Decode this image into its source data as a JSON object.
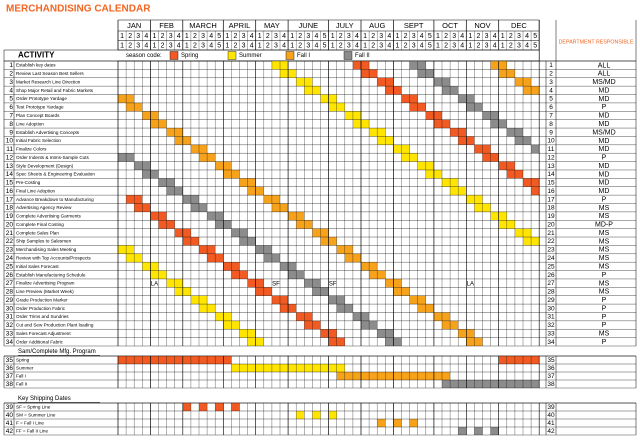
{
  "title": "MERCHANDISING CALENDAR",
  "months": [
    {
      "name": "JAN",
      "weeks": [
        1,
        2,
        3,
        4
      ]
    },
    {
      "name": "FEB",
      "weeks": [
        1,
        2,
        3,
        4
      ]
    },
    {
      "name": "MARCH",
      "weeks": [
        1,
        2,
        3,
        4,
        5
      ]
    },
    {
      "name": "APRIL",
      "weeks": [
        1,
        2,
        3,
        4
      ]
    },
    {
      "name": "MAY",
      "weeks": [
        1,
        2,
        3,
        4
      ]
    },
    {
      "name": "JUNE",
      "weeks": [
        1,
        2,
        3,
        4,
        5
      ]
    },
    {
      "name": "JULY",
      "weeks": [
        1,
        2,
        3,
        4
      ]
    },
    {
      "name": "AUG",
      "weeks": [
        1,
        2,
        3,
        4
      ]
    },
    {
      "name": "SEPT",
      "weeks": [
        1,
        2,
        3,
        4,
        5
      ]
    },
    {
      "name": "OCT",
      "weeks": [
        1,
        2,
        3,
        4
      ]
    },
    {
      "name": "NOV",
      "weeks": [
        1,
        2,
        3,
        4
      ]
    },
    {
      "name": "DEC",
      "weeks": [
        1,
        2,
        3,
        4,
        5
      ]
    }
  ],
  "activity_header": "ACTIVITY",
  "season_code_label": "season code:",
  "seasons": [
    {
      "name": "Spring",
      "color": "#f15a22"
    },
    {
      "name": "Summer",
      "color": "#ffe500"
    },
    {
      "name": "Fall I",
      "color": "#f7a21b"
    },
    {
      "name": "Fall II",
      "color": "#8c8c8c"
    }
  ],
  "department_header": "DEPARTMENT RESPONSIBLE",
  "rows": [
    {
      "num": 1,
      "activity": "Establish key dates",
      "dept": "ALL",
      "spans": [
        [
          29,
          2,
          0
        ],
        [
          19,
          2,
          1
        ],
        [
          46,
          2,
          2
        ],
        [
          36,
          2,
          3
        ]
      ]
    },
    {
      "num": 2,
      "activity": "Review Last Season Best Sellers",
      "dept": "ALL",
      "spans": [
        [
          30,
          2,
          0
        ],
        [
          20,
          2,
          1
        ],
        [
          47,
          2,
          2
        ],
        [
          37,
          2,
          3
        ]
      ]
    },
    {
      "num": 3,
      "activity": "Market Research Line Direction",
      "dept": "MS/MD",
      "spans": [
        [
          32,
          2,
          0
        ],
        [
          22,
          2,
          1
        ],
        [
          49,
          2,
          2
        ],
        [
          39,
          2,
          3
        ]
      ]
    },
    {
      "num": 4,
      "activity": "Shop Major Retail and Fabric Markets",
      "dept": "MD",
      "spans": [
        [
          33,
          2,
          0
        ],
        [
          23,
          2,
          1
        ],
        [
          50,
          2,
          2
        ],
        [
          40,
          2,
          3
        ]
      ]
    },
    {
      "num": 5,
      "activity": "Order Prototype Yardage",
      "dept": "MD",
      "spans": [
        [
          35,
          2,
          0
        ],
        [
          25,
          2,
          1
        ],
        [
          0,
          2,
          2
        ],
        [
          42,
          2,
          3
        ]
      ]
    },
    {
      "num": 6,
      "activity": "Test Prototype Yardage",
      "dept": "P",
      "spans": [
        [
          36,
          2,
          0
        ],
        [
          26,
          2,
          1
        ],
        [
          1,
          2,
          2
        ],
        [
          43,
          2,
          3
        ]
      ]
    },
    {
      "num": 7,
      "activity": "Plan Concept Boards",
      "dept": "MD",
      "spans": [
        [
          38,
          2,
          0
        ],
        [
          28,
          2,
          1
        ],
        [
          3,
          2,
          2
        ],
        [
          45,
          2,
          3
        ]
      ]
    },
    {
      "num": 8,
      "activity": "Line Adoption",
      "dept": "MD",
      "spans": [
        [
          39,
          2,
          0
        ],
        [
          29,
          2,
          1
        ],
        [
          4,
          2,
          2
        ],
        [
          46,
          2,
          3
        ]
      ]
    },
    {
      "num": 9,
      "activity": "Establish Advertising Concepts",
      "dept": "MS/MD",
      "spans": [
        [
          41,
          2,
          0
        ],
        [
          31,
          2,
          1
        ],
        [
          6,
          2,
          2
        ],
        [
          48,
          2,
          3
        ]
      ]
    },
    {
      "num": 10,
      "activity": "Initial Fabric Selection",
      "dept": "MD",
      "spans": [
        [
          42,
          2,
          0
        ],
        [
          32,
          2,
          1
        ],
        [
          7,
          2,
          2
        ],
        [
          49,
          2,
          3
        ]
      ]
    },
    {
      "num": 11,
      "activity": "Finalize Colors",
      "dept": "MD",
      "spans": [
        [
          44,
          2,
          0
        ],
        [
          34,
          2,
          1
        ],
        [
          9,
          2,
          2
        ],
        [
          51,
          1,
          3
        ]
      ]
    },
    {
      "num": 12,
      "activity": "Order Indents & Intms-Sample Cuts",
      "dept": "P",
      "spans": [
        [
          45,
          2,
          0
        ],
        [
          35,
          2,
          1
        ],
        [
          10,
          2,
          2
        ],
        [
          0,
          2,
          3
        ]
      ]
    },
    {
      "num": 13,
      "activity": "Style Development (Design)",
      "dept": "MD",
      "spans": [
        [
          47,
          2,
          0
        ],
        [
          37,
          2,
          1
        ],
        [
          12,
          2,
          2
        ],
        [
          2,
          2,
          3
        ]
      ]
    },
    {
      "num": 14,
      "activity": "Spec Sheets & Engineering Evaluation",
      "dept": "MD",
      "spans": [
        [
          48,
          2,
          0
        ],
        [
          38,
          2,
          1
        ],
        [
          13,
          2,
          2
        ],
        [
          3,
          2,
          3
        ]
      ]
    },
    {
      "num": 15,
      "activity": "Pre-Costing",
      "dept": "MD",
      "spans": [
        [
          50,
          2,
          0
        ],
        [
          40,
          2,
          1
        ],
        [
          15,
          2,
          2
        ],
        [
          5,
          2,
          3
        ]
      ]
    },
    {
      "num": 16,
      "activity": "Final Line Adoption",
      "dept": "MD",
      "spans": [
        [
          51,
          1,
          0
        ],
        [
          41,
          2,
          1
        ],
        [
          16,
          2,
          2
        ],
        [
          6,
          2,
          3
        ]
      ]
    },
    {
      "num": 17,
      "activity": "Advance Breakdown to Manufacturing",
      "dept": "P",
      "spans": [
        [
          1,
          2,
          0
        ],
        [
          43,
          2,
          1
        ],
        [
          18,
          2,
          2
        ],
        [
          8,
          2,
          3
        ]
      ]
    },
    {
      "num": 18,
      "activity": "Advertising Agency Review",
      "dept": "MS",
      "spans": [
        [
          2,
          2,
          0
        ],
        [
          44,
          2,
          1
        ],
        [
          19,
          2,
          2
        ],
        [
          9,
          2,
          3
        ]
      ]
    },
    {
      "num": 19,
      "activity": "Complete Advertising Garments",
      "dept": "MS",
      "spans": [
        [
          4,
          2,
          0
        ],
        [
          46,
          2,
          1
        ],
        [
          21,
          2,
          2
        ],
        [
          11,
          2,
          3
        ]
      ]
    },
    {
      "num": 20,
      "activity": "Complete Final Costing",
      "dept": "MD-P",
      "spans": [
        [
          5,
          2,
          0
        ],
        [
          47,
          2,
          1
        ],
        [
          22,
          2,
          2
        ],
        [
          12,
          2,
          3
        ]
      ]
    },
    {
      "num": 21,
      "activity": "Complete Sales Plan",
      "dept": "MS",
      "spans": [
        [
          7,
          2,
          0
        ],
        [
          49,
          2,
          1
        ],
        [
          24,
          2,
          2
        ],
        [
          14,
          2,
          3
        ]
      ]
    },
    {
      "num": 22,
      "activity": "Ship Samples to Salesmen",
      "dept": "MS",
      "spans": [
        [
          8,
          2,
          0
        ],
        [
          50,
          2,
          1
        ],
        [
          25,
          2,
          2
        ],
        [
          15,
          2,
          3
        ]
      ]
    },
    {
      "num": 23,
      "activity": "Merchandising Sales Meeting",
      "dept": "MS",
      "spans": [
        [
          10,
          2,
          0
        ],
        [
          0,
          2,
          1
        ],
        [
          27,
          2,
          2
        ],
        [
          17,
          2,
          3
        ]
      ]
    },
    {
      "num": 24,
      "activity": "Review with Top Accounts/Prospects",
      "dept": "MS",
      "spans": [
        [
          11,
          2,
          0
        ],
        [
          1,
          2,
          1
        ],
        [
          28,
          2,
          2
        ],
        [
          18,
          2,
          3
        ]
      ]
    },
    {
      "num": 25,
      "activity": "Initial Sales Forecast",
      "dept": "MS",
      "spans": [
        [
          13,
          2,
          0
        ],
        [
          3,
          2,
          1
        ],
        [
          30,
          2,
          2
        ],
        [
          20,
          2,
          3
        ]
      ]
    },
    {
      "num": 26,
      "activity": "Establish Manufacturing Schedule",
      "dept": "P",
      "spans": [
        [
          14,
          2,
          0
        ],
        [
          4,
          2,
          1
        ],
        [
          31,
          2,
          2
        ],
        [
          21,
          2,
          3
        ]
      ]
    },
    {
      "num": 27,
      "activity": "Finalize Advertising Program",
      "dept": "MS",
      "spans": [
        [
          16,
          2,
          0
        ],
        [
          6,
          2,
          1
        ],
        [
          33,
          2,
          2
        ],
        [
          23,
          2,
          3
        ]
      ]
    },
    {
      "num": 28,
      "activity": "Line Preview (Market Week)",
      "dept": "MS",
      "spans": [
        [
          17,
          2,
          0
        ],
        [
          7,
          2,
          1
        ],
        [
          34,
          2,
          2
        ],
        [
          24,
          2,
          3
        ]
      ],
      "notes": [
        {
          "week": 4,
          "text": "LA"
        },
        {
          "week": 19,
          "text": "SF"
        },
        {
          "week": 26,
          "text": "SF"
        },
        {
          "week": 43,
          "text": "LA"
        }
      ]
    },
    {
      "num": 29,
      "activity": "Grade Production Marker",
      "dept": "P",
      "spans": [
        [
          19,
          2,
          0
        ],
        [
          9,
          2,
          1
        ],
        [
          36,
          2,
          2
        ],
        [
          26,
          2,
          3
        ]
      ]
    },
    {
      "num": 30,
      "activity": "Order Production Fabric",
      "dept": "P",
      "spans": [
        [
          20,
          2,
          0
        ],
        [
          10,
          2,
          1
        ],
        [
          37,
          2,
          2
        ],
        [
          27,
          2,
          3
        ]
      ]
    },
    {
      "num": 31,
      "activity": "Order Trims and Sundries",
      "dept": "P",
      "spans": [
        [
          22,
          2,
          0
        ],
        [
          12,
          2,
          1
        ],
        [
          39,
          2,
          2
        ],
        [
          29,
          2,
          3
        ]
      ]
    },
    {
      "num": 32,
      "activity": "Cut and Sew Production Plant loading",
      "dept": "P",
      "spans": [
        [
          23,
          2,
          0
        ],
        [
          13,
          2,
          1
        ],
        [
          40,
          2,
          2
        ],
        [
          30,
          2,
          3
        ]
      ]
    },
    {
      "num": 33,
      "activity": "Sales Forecast Adjustment",
      "dept": "MS",
      "spans": [
        [
          25,
          2,
          0
        ],
        [
          15,
          2,
          1
        ],
        [
          42,
          2,
          2
        ],
        [
          32,
          2,
          3
        ]
      ]
    },
    {
      "num": 34,
      "activity": "Order Additional Fabric",
      "dept": "P",
      "spans": [
        [
          26,
          2,
          0
        ],
        [
          16,
          2,
          1
        ],
        [
          43,
          2,
          2
        ],
        [
          33,
          2,
          3
        ]
      ]
    }
  ],
  "program": {
    "title": "Sam/Complete Mfg. Program",
    "rows": [
      {
        "num": 35,
        "activity": "Spring",
        "spans": [
          [
            0,
            14,
            0
          ],
          [
            47,
            5,
            0
          ]
        ]
      },
      {
        "num": 36,
        "activity": "Summer",
        "spans": [
          [
            14,
            14,
            1
          ]
        ]
      },
      {
        "num": 37,
        "activity": "Fall I",
        "spans": [
          [
            27,
            14,
            2
          ]
        ]
      },
      {
        "num": 38,
        "activity": "Fall II",
        "spans": [
          [
            40,
            12,
            3
          ]
        ]
      }
    ]
  },
  "shipping": {
    "title": "Key Shipping Dates",
    "rows": [
      {
        "num": 39,
        "activity": "SF = Spring Line",
        "spans": [
          [
            8,
            1,
            0
          ],
          [
            10,
            1,
            0
          ],
          [
            12,
            1,
            0
          ],
          [
            14,
            1,
            0
          ]
        ]
      },
      {
        "num": 40,
        "activity": "SM = Summer Line",
        "spans": [
          [
            22,
            1,
            1
          ],
          [
            24,
            1,
            1
          ],
          [
            26,
            1,
            1
          ]
        ]
      },
      {
        "num": 41,
        "activity": "F = Fall I Line",
        "spans": [
          [
            32,
            1,
            2
          ],
          [
            34,
            1,
            2
          ],
          [
            36,
            1,
            2
          ]
        ]
      },
      {
        "num": 42,
        "activity": "FF = Fall II Line",
        "spans": [
          [
            42,
            1,
            3
          ],
          [
            44,
            1,
            3
          ],
          [
            46,
            1,
            3
          ]
        ]
      }
    ]
  }
}
